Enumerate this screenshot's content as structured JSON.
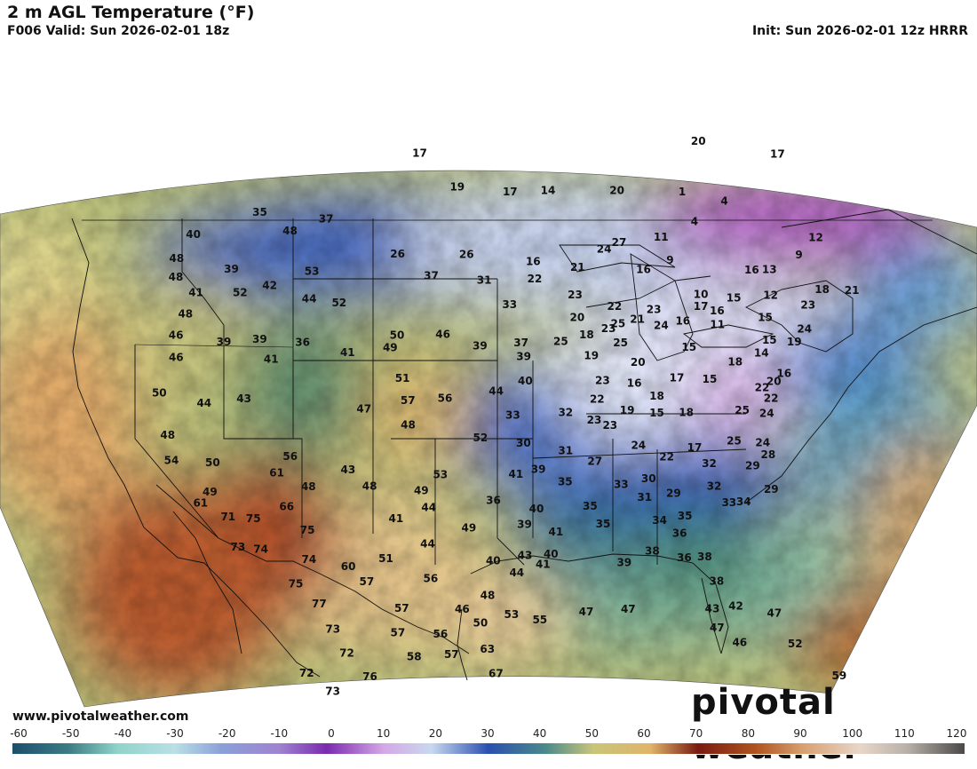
{
  "header": {
    "title": "2 m AGL Temperature (°F)",
    "valid": "F006 Valid: Sun 2026-02-01 18z",
    "init": "Init: Sun 2026-02-01 12z HRRR"
  },
  "footer": {
    "website": "www.pivotalweather.com",
    "brand": "pivotal weather"
  },
  "colorbar": {
    "ticks": [
      "-60",
      "-50",
      "-40",
      "-30",
      "-20",
      "-10",
      "0",
      "10",
      "20",
      "30",
      "40",
      "50",
      "60",
      "70",
      "80",
      "90",
      "100",
      "110",
      "120"
    ]
  },
  "map": {
    "units": "°F",
    "temperature_labels": [
      {
        "t": "40",
        "lon": -123.5,
        "lat": 48.6
      },
      {
        "t": "35",
        "lon": -118.0,
        "lat": 49.6
      },
      {
        "t": "48",
        "lon": -115.2,
        "lat": 48.4
      },
      {
        "t": "37",
        "lon": -112.2,
        "lat": 49.0
      },
      {
        "t": "17",
        "lon": -104.4,
        "lat": 52.6
      },
      {
        "t": "19",
        "lon": -101.0,
        "lat": 50.6
      },
      {
        "t": "17",
        "lon": -96.4,
        "lat": 50.3
      },
      {
        "t": "14",
        "lon": -93.1,
        "lat": 50.4
      },
      {
        "t": "20",
        "lon": -87.1,
        "lat": 50.5
      },
      {
        "t": "20",
        "lon": -79.5,
        "lat": 53.6
      },
      {
        "t": "17",
        "lon": -72.5,
        "lat": 53.2
      },
      {
        "t": "48",
        "lon": -124.6,
        "lat": 47.3
      },
      {
        "t": "48",
        "lon": -124.4,
        "lat": 46.2
      },
      {
        "t": "39",
        "lon": -119.8,
        "lat": 46.4
      },
      {
        "t": "41",
        "lon": -122.5,
        "lat": 45.2
      },
      {
        "t": "52",
        "lon": -118.8,
        "lat": 45.0
      },
      {
        "t": "42",
        "lon": -116.4,
        "lat": 45.3
      },
      {
        "t": "53",
        "lon": -113.0,
        "lat": 46.0
      },
      {
        "t": "44",
        "lon": -113.0,
        "lat": 44.4
      },
      {
        "t": "52",
        "lon": -110.5,
        "lat": 44.1
      },
      {
        "t": "26",
        "lon": -105.9,
        "lat": 46.8
      },
      {
        "t": "26",
        "lon": -100.1,
        "lat": 46.7
      },
      {
        "t": "37",
        "lon": -103.0,
        "lat": 45.5
      },
      {
        "t": "31",
        "lon": -98.6,
        "lat": 45.2
      },
      {
        "t": "16",
        "lon": -94.5,
        "lat": 46.3
      },
      {
        "t": "22",
        "lon": -94.4,
        "lat": 45.3
      },
      {
        "t": "33",
        "lon": -96.5,
        "lat": 43.8
      },
      {
        "t": "48",
        "lon": -123.1,
        "lat": 44.0
      },
      {
        "t": "46",
        "lon": -123.6,
        "lat": 42.8
      },
      {
        "t": "46",
        "lon": -123.3,
        "lat": 41.5
      },
      {
        "t": "39",
        "lon": -119.6,
        "lat": 42.2
      },
      {
        "t": "39",
        "lon": -116.7,
        "lat": 42.2
      },
      {
        "t": "36",
        "lon": -113.2,
        "lat": 41.9
      },
      {
        "t": "41",
        "lon": -115.6,
        "lat": 41.0
      },
      {
        "t": "41",
        "lon": -109.5,
        "lat": 41.2
      },
      {
        "t": "50",
        "lon": -105.6,
        "lat": 42.1
      },
      {
        "t": "49",
        "lon": -106.1,
        "lat": 41.4
      },
      {
        "t": "46",
        "lon": -101.9,
        "lat": 42.1
      },
      {
        "t": "39",
        "lon": -98.9,
        "lat": 41.4
      },
      {
        "t": "37",
        "lon": -95.6,
        "lat": 41.6
      },
      {
        "t": "39",
        "lon": -95.4,
        "lat": 40.8
      },
      {
        "t": "40",
        "lon": -95.3,
        "lat": 39.4
      },
      {
        "t": "44",
        "lon": -97.6,
        "lat": 38.8
      },
      {
        "t": "51",
        "lon": -105.0,
        "lat": 39.6
      },
      {
        "t": "57",
        "lon": -104.5,
        "lat": 38.3
      },
      {
        "t": "56",
        "lon": -101.6,
        "lat": 38.4
      },
      {
        "t": "47",
        "lon": -107.9,
        "lat": 37.9
      },
      {
        "t": "48",
        "lon": -104.4,
        "lat": 36.9
      },
      {
        "t": "33",
        "lon": -96.3,
        "lat": 37.4
      },
      {
        "t": "52",
        "lon": -98.8,
        "lat": 36.1
      },
      {
        "t": "30",
        "lon": -95.5,
        "lat": 35.8
      },
      {
        "t": "32",
        "lon": -92.2,
        "lat": 37.6
      },
      {
        "t": "23",
        "lon": -90.0,
        "lat": 37.2
      },
      {
        "t": "31",
        "lon": -92.3,
        "lat": 35.4
      },
      {
        "t": "50",
        "lon": -124.2,
        "lat": 39.5
      },
      {
        "t": "44",
        "lon": -120.5,
        "lat": 38.7
      },
      {
        "t": "43",
        "lon": -117.4,
        "lat": 38.8
      },
      {
        "t": "48",
        "lon": -123.0,
        "lat": 37.0
      },
      {
        "t": "54",
        "lon": -122.4,
        "lat": 35.5
      },
      {
        "t": "50",
        "lon": -119.2,
        "lat": 35.2
      },
      {
        "t": "56",
        "lon": -113.3,
        "lat": 35.3
      },
      {
        "t": "61",
        "lon": -114.2,
        "lat": 34.4
      },
      {
        "t": "43",
        "lon": -108.8,
        "lat": 34.4
      },
      {
        "t": "48",
        "lon": -111.7,
        "lat": 33.5
      },
      {
        "t": "48",
        "lon": -107.1,
        "lat": 33.4
      },
      {
        "t": "53",
        "lon": -101.8,
        "lat": 34.0
      },
      {
        "t": "49",
        "lon": -103.2,
        "lat": 33.1
      },
      {
        "t": "41",
        "lon": -96.1,
        "lat": 34.0
      },
      {
        "t": "39",
        "lon": -94.4,
        "lat": 34.3
      },
      {
        "t": "35",
        "lon": -92.4,
        "lat": 33.6
      },
      {
        "t": "49",
        "lon": -119.1,
        "lat": 33.5
      },
      {
        "t": "61",
        "lon": -119.7,
        "lat": 32.9
      },
      {
        "t": "71",
        "lon": -117.5,
        "lat": 32.0
      },
      {
        "t": "75",
        "lon": -115.6,
        "lat": 31.8
      },
      {
        "t": "66",
        "lon": -113.2,
        "lat": 32.4
      },
      {
        "t": "75",
        "lon": -111.5,
        "lat": 31.0
      },
      {
        "t": "41",
        "lon": -105.0,
        "lat": 31.5
      },
      {
        "t": "44",
        "lon": -102.6,
        "lat": 32.1
      },
      {
        "t": "49",
        "lon": -99.6,
        "lat": 30.9
      },
      {
        "t": "36",
        "lon": -97.8,
        "lat": 32.5
      },
      {
        "t": "40",
        "lon": -94.6,
        "lat": 32.0
      },
      {
        "t": "39",
        "lon": -95.5,
        "lat": 31.1
      },
      {
        "t": "41",
        "lon": -93.2,
        "lat": 30.7
      },
      {
        "t": "44",
        "lon": -102.6,
        "lat": 30.0
      },
      {
        "t": "73",
        "lon": -116.5,
        "lat": 30.2
      },
      {
        "t": "74",
        "lon": -114.8,
        "lat": 30.0
      },
      {
        "t": "74",
        "lon": -111.2,
        "lat": 29.3
      },
      {
        "t": "60",
        "lon": -108.3,
        "lat": 28.8
      },
      {
        "t": "51",
        "lon": -105.6,
        "lat": 29.2
      },
      {
        "t": "40",
        "lon": -97.8,
        "lat": 29.0
      },
      {
        "t": "43",
        "lon": -95.5,
        "lat": 29.3
      },
      {
        "t": "40",
        "lon": -93.6,
        "lat": 29.4
      },
      {
        "t": "75",
        "lon": -112.0,
        "lat": 27.9
      },
      {
        "t": "57",
        "lon": -106.9,
        "lat": 27.9
      },
      {
        "t": "56",
        "lon": -102.3,
        "lat": 28.0
      },
      {
        "t": "44",
        "lon": -96.1,
        "lat": 28.3
      },
      {
        "t": "41",
        "lon": -94.2,
        "lat": 28.8
      },
      {
        "t": "77",
        "lon": -110.2,
        "lat": 26.7
      },
      {
        "t": "57",
        "lon": -104.3,
        "lat": 26.3
      },
      {
        "t": "48",
        "lon": -98.2,
        "lat": 27.0
      },
      {
        "t": "46",
        "lon": -100.0,
        "lat": 26.2
      },
      {
        "t": "73",
        "lon": -109.1,
        "lat": 25.2
      },
      {
        "t": "50",
        "lon": -98.7,
        "lat": 25.4
      },
      {
        "t": "53",
        "lon": -96.5,
        "lat": 25.9
      },
      {
        "t": "57",
        "lon": -104.5,
        "lat": 24.9
      },
      {
        "t": "56",
        "lon": -101.5,
        "lat": 24.8
      },
      {
        "t": "72",
        "lon": -108.0,
        "lat": 23.8
      },
      {
        "t": "58",
        "lon": -103.3,
        "lat": 23.5
      },
      {
        "t": "57",
        "lon": -100.7,
        "lat": 23.6
      },
      {
        "t": "63",
        "lon": -98.2,
        "lat": 23.9
      },
      {
        "t": "72",
        "lon": -110.7,
        "lat": 22.7
      },
      {
        "t": "76",
        "lon": -106.3,
        "lat": 22.4
      },
      {
        "t": "73",
        "lon": -108.8,
        "lat": 21.6
      },
      {
        "t": "67",
        "lon": -97.6,
        "lat": 22.5
      },
      {
        "t": "55",
        "lon": -94.5,
        "lat": 25.6
      },
      {
        "t": "47",
        "lon": -91.2,
        "lat": 26.1
      },
      {
        "t": "47",
        "lon": -88.2,
        "lat": 26.3
      },
      {
        "t": "27",
        "lon": -87.2,
        "lat": 47.5
      },
      {
        "t": "24",
        "lon": -88.5,
        "lat": 47.1
      },
      {
        "t": "21",
        "lon": -90.8,
        "lat": 46.0
      },
      {
        "t": "11",
        "lon": -83.6,
        "lat": 47.9
      },
      {
        "t": "16",
        "lon": -85.3,
        "lat": 46.0
      },
      {
        "t": "9",
        "lon": -83.0,
        "lat": 46.6
      },
      {
        "t": "23",
        "lon": -91.1,
        "lat": 44.4
      },
      {
        "t": "20",
        "lon": -91.0,
        "lat": 43.1
      },
      {
        "t": "22",
        "lon": -87.9,
        "lat": 43.8
      },
      {
        "t": "25",
        "lon": -87.7,
        "lat": 42.8
      },
      {
        "t": "21",
        "lon": -86.1,
        "lat": 43.1
      },
      {
        "t": "23",
        "lon": -84.7,
        "lat": 43.7
      },
      {
        "t": "25",
        "lon": -92.4,
        "lat": 41.7
      },
      {
        "t": "18",
        "lon": -90.3,
        "lat": 42.1
      },
      {
        "t": "23",
        "lon": -88.5,
        "lat": 42.5
      },
      {
        "t": "25",
        "lon": -87.6,
        "lat": 41.7
      },
      {
        "t": "24",
        "lon": -84.2,
        "lat": 42.8
      },
      {
        "t": "16",
        "lon": -82.4,
        "lat": 43.1
      },
      {
        "t": "15",
        "lon": -82.1,
        "lat": 41.6
      },
      {
        "t": "19",
        "lon": -90.0,
        "lat": 40.9
      },
      {
        "t": "20",
        "lon": -86.3,
        "lat": 40.6
      },
      {
        "t": "17",
        "lon": -83.3,
        "lat": 39.8
      },
      {
        "t": "23",
        "lon": -89.2,
        "lat": 39.5
      },
      {
        "t": "16",
        "lon": -86.7,
        "lat": 39.4
      },
      {
        "t": "18",
        "lon": -85.0,
        "lat": 38.7
      },
      {
        "t": "15",
        "lon": -80.7,
        "lat": 39.8
      },
      {
        "t": "22",
        "lon": -89.7,
        "lat": 38.4
      },
      {
        "t": "19",
        "lon": -87.4,
        "lat": 37.8
      },
      {
        "t": "15",
        "lon": -85.1,
        "lat": 37.7
      },
      {
        "t": "18",
        "lon": -82.8,
        "lat": 37.8
      },
      {
        "t": "23",
        "lon": -88.8,
        "lat": 36.9
      },
      {
        "t": "24",
        "lon": -86.7,
        "lat": 35.8
      },
      {
        "t": "22",
        "lon": -84.6,
        "lat": 35.2
      },
      {
        "t": "17",
        "lon": -82.4,
        "lat": 35.8
      },
      {
        "t": "27",
        "lon": -90.1,
        "lat": 34.8
      },
      {
        "t": "30",
        "lon": -86.1,
        "lat": 33.9
      },
      {
        "t": "33",
        "lon": -88.2,
        "lat": 33.5
      },
      {
        "t": "31",
        "lon": -86.5,
        "lat": 32.8
      },
      {
        "t": "29",
        "lon": -84.3,
        "lat": 33.1
      },
      {
        "t": "32",
        "lon": -81.4,
        "lat": 34.9
      },
      {
        "t": "32",
        "lon": -81.2,
        "lat": 33.6
      },
      {
        "t": "34",
        "lon": -85.5,
        "lat": 31.5
      },
      {
        "t": "35",
        "lon": -83.6,
        "lat": 31.8
      },
      {
        "t": "36",
        "lon": -84.1,
        "lat": 30.8
      },
      {
        "t": "35",
        "lon": -90.6,
        "lat": 32.2
      },
      {
        "t": "35",
        "lon": -89.7,
        "lat": 31.2
      },
      {
        "t": "39",
        "lon": -88.3,
        "lat": 29.0
      },
      {
        "t": "38",
        "lon": -86.2,
        "lat": 29.7
      },
      {
        "t": "36",
        "lon": -83.9,
        "lat": 29.4
      },
      {
        "t": "38",
        "lon": -82.4,
        "lat": 29.5
      },
      {
        "t": "38",
        "lon": -81.7,
        "lat": 28.1
      },
      {
        "t": "43",
        "lon": -82.2,
        "lat": 26.5
      },
      {
        "t": "42",
        "lon": -80.5,
        "lat": 26.7
      },
      {
        "t": "47",
        "lon": -82.0,
        "lat": 25.4
      },
      {
        "t": "46",
        "lon": -80.5,
        "lat": 24.6
      },
      {
        "t": "47",
        "lon": -77.8,
        "lat": 26.4
      },
      {
        "t": "52",
        "lon": -76.6,
        "lat": 24.7
      },
      {
        "t": "59",
        "lon": -73.8,
        "lat": 23.0
      },
      {
        "t": "33",
        "lon": -80.2,
        "lat": 32.7
      },
      {
        "t": "34",
        "lon": -79.1,
        "lat": 32.8
      },
      {
        "t": "29",
        "lon": -78.1,
        "lat": 34.9
      },
      {
        "t": "29",
        "lon": -76.9,
        "lat": 33.6
      },
      {
        "t": "28",
        "lon": -76.8,
        "lat": 35.6
      },
      {
        "t": "24",
        "lon": -77.1,
        "lat": 36.3
      },
      {
        "t": "25",
        "lon": -79.3,
        "lat": 36.3
      },
      {
        "t": "24",
        "lon": -76.5,
        "lat": 38.0
      },
      {
        "t": "20",
        "lon": -75.6,
        "lat": 39.9
      },
      {
        "t": "22",
        "lon": -76.6,
        "lat": 39.5
      },
      {
        "t": "22",
        "lon": -76.0,
        "lat": 38.9
      },
      {
        "t": "25",
        "lon": -78.4,
        "lat": 38.1
      },
      {
        "t": "18",
        "lon": -78.5,
        "lat": 40.9
      },
      {
        "t": "14",
        "lon": -76.3,
        "lat": 41.5
      },
      {
        "t": "19",
        "lon": -73.5,
        "lat": 42.3
      },
      {
        "t": "15",
        "lon": -75.5,
        "lat": 42.3
      },
      {
        "t": "15",
        "lon": -75.6,
        "lat": 43.6
      },
      {
        "t": "11",
        "lon": -79.6,
        "lat": 43.0
      },
      {
        "t": "10",
        "lon": -80.7,
        "lat": 44.7
      },
      {
        "t": "17",
        "lon": -80.8,
        "lat": 44.0
      },
      {
        "t": "16",
        "lon": -79.5,
        "lat": 43.8
      },
      {
        "t": "15",
        "lon": -78.0,
        "lat": 44.6
      },
      {
        "t": "12",
        "lon": -74.9,
        "lat": 44.9
      },
      {
        "t": "16",
        "lon": -76.2,
        "lat": 46.3
      },
      {
        "t": "13",
        "lon": -74.7,
        "lat": 46.4
      },
      {
        "t": "24",
        "lon": -72.5,
        "lat": 43.1
      },
      {
        "t": "23",
        "lon": -71.9,
        "lat": 44.5
      },
      {
        "t": "18",
        "lon": -70.5,
        "lat": 45.5
      },
      {
        "t": "21",
        "lon": -68.0,
        "lat": 45.6
      },
      {
        "t": "12",
        "lon": -70.3,
        "lat": 48.5
      },
      {
        "t": "9",
        "lon": -72.0,
        "lat": 47.4
      },
      {
        "t": "1",
        "lon": -81.4,
        "lat": 50.6
      },
      {
        "t": "4",
        "lon": -77.8,
        "lat": 50.2
      },
      {
        "t": "4",
        "lon": -80.6,
        "lat": 48.9
      },
      {
        "t": "16",
        "lon": -74.7,
        "lat": 40.4
      }
    ]
  }
}
